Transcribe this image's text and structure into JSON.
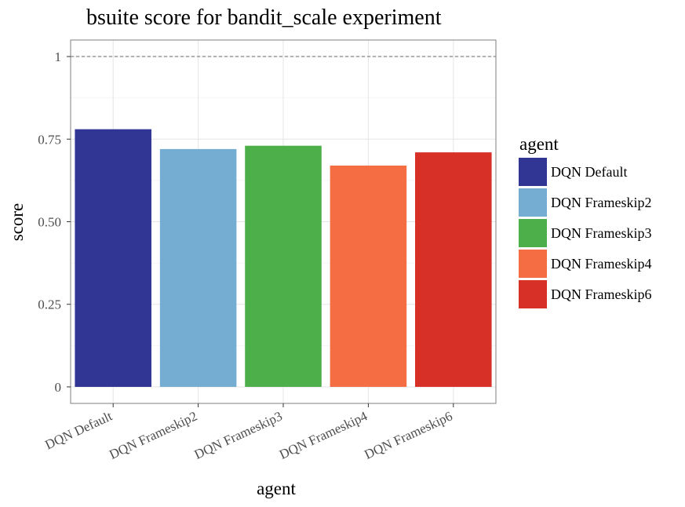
{
  "chart_data": {
    "type": "bar",
    "title": "bsuite score for bandit_scale experiment",
    "xlabel": "agent",
    "ylabel": "score",
    "categories": [
      "DQN Default",
      "DQN Frameskip2",
      "DQN Frameskip3",
      "DQN Frameskip4",
      "DQN Frameskip6"
    ],
    "values": [
      0.78,
      0.72,
      0.73,
      0.67,
      0.71
    ],
    "colors": [
      "#313695",
      "#74add1",
      "#4daf4a",
      "#f46d43",
      "#d73027"
    ],
    "ylim": [
      -0.05,
      1.05
    ],
    "yticks": [
      0,
      0.25,
      0.5,
      0.75,
      1
    ],
    "ytick_labels": [
      "0",
      "0.25",
      "0.50",
      "0.75",
      "1"
    ],
    "reference_line": 1,
    "grid": true,
    "legend": {
      "title": "agent",
      "position": "right",
      "entries": [
        "DQN Default",
        "DQN Frameskip2",
        "DQN Frameskip3",
        "DQN Frameskip4",
        "DQN Frameskip6"
      ]
    }
  }
}
